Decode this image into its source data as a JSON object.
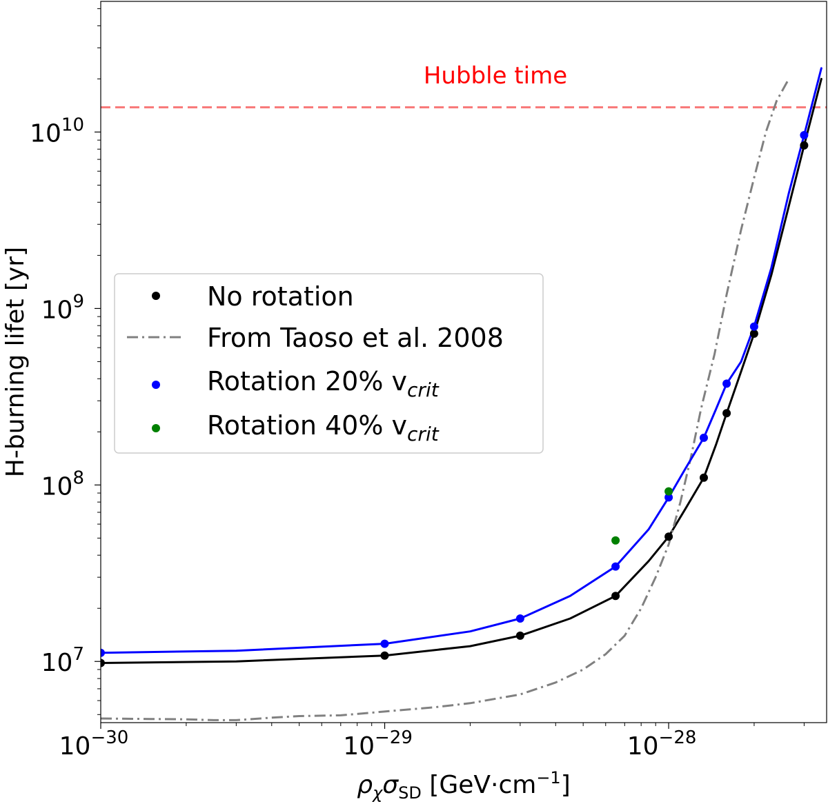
{
  "chart_data": {
    "type": "line",
    "xscale": "log",
    "yscale": "log",
    "xlim": [
      1e-30,
      3.6e-28
    ],
    "ylim": [
      4500000.0,
      55000000000.0
    ],
    "xlabel": {
      "base": "ρ",
      "sub1": "χ",
      "mid": "σ",
      "sub2": "SD",
      "unit": " [GeV·cm",
      "unit_exp": "−1",
      "close": "]"
    },
    "ylabel": "H-burning lifet [yr]",
    "x_ticks": [
      {
        "value": 1e-30,
        "base": "10",
        "exp": "−30"
      },
      {
        "value": 1e-29,
        "base": "10",
        "exp": "−29"
      },
      {
        "value": 1e-28,
        "base": "10",
        "exp": "−28"
      }
    ],
    "y_ticks": [
      {
        "value": 10000000.0,
        "base": "10",
        "exp": "7"
      },
      {
        "value": 100000000.0,
        "base": "10",
        "exp": "8"
      },
      {
        "value": 1000000000.0,
        "base": "10",
        "exp": "9"
      },
      {
        "value": 10000000000.0,
        "base": "10",
        "exp": "10"
      }
    ],
    "reference_line": {
      "label": "Hubble time",
      "value": 13800000000.0,
      "color": "#f87878",
      "text_color": "#ff0000"
    },
    "series": [
      {
        "name": "No rotation",
        "kind": "points+curve",
        "color": "#000000",
        "points": [
          [
            1e-30,
            9800000.0
          ],
          [
            1e-29,
            10800000.0
          ],
          [
            3e-29,
            14000000.0
          ],
          [
            6.5e-29,
            23500000.0
          ],
          [
            1e-28,
            51000000.0
          ],
          [
            1.33e-28,
            110000000.0
          ],
          [
            1.6e-28,
            255000000.0
          ],
          [
            2e-28,
            720000000.0
          ],
          [
            3e-28,
            8400000000.0
          ]
        ],
        "curve": [
          [
            1e-30,
            9800000.0
          ],
          [
            3e-30,
            10000000.0
          ],
          [
            1e-29,
            10800000.0
          ],
          [
            2e-29,
            12200000.0
          ],
          [
            3e-29,
            14000000.0
          ],
          [
            4.5e-29,
            17500000.0
          ],
          [
            6.5e-29,
            23500000.0
          ],
          [
            8.5e-29,
            37000000.0
          ],
          [
            1e-28,
            51000000.0
          ],
          [
            1.15e-28,
            74000000.0
          ],
          [
            1.33e-28,
            110000000.0
          ],
          [
            1.47e-28,
            170000000.0
          ],
          [
            1.6e-28,
            255000000.0
          ],
          [
            1.8e-28,
            440000000.0
          ],
          [
            2e-28,
            720000000.0
          ],
          [
            2.3e-28,
            1550000000.0
          ],
          [
            2.65e-28,
            3800000000.0
          ],
          [
            3e-28,
            8400000000.0
          ],
          [
            3.45e-28,
            20000000000.0
          ]
        ]
      },
      {
        "name": "From Taoso et al. 2008",
        "kind": "dashdot",
        "color": "#808080",
        "curve": [
          [
            1e-30,
            4750000.0
          ],
          [
            1.5e-30,
            4720000.0
          ],
          [
            2e-30,
            4700000.0
          ],
          [
            2.5e-30,
            4650000.0
          ],
          [
            3e-30,
            4650000.0
          ],
          [
            4e-30,
            4800000.0
          ],
          [
            5e-30,
            4900000.0
          ],
          [
            7e-30,
            4950000.0
          ],
          [
            1e-29,
            5200000.0
          ],
          [
            1.5e-29,
            5500000.0
          ],
          [
            2e-29,
            5800000.0
          ],
          [
            3e-29,
            6500000.0
          ],
          [
            4e-29,
            7600000.0
          ],
          [
            5e-29,
            9000000.0
          ],
          [
            6e-29,
            11000000.0
          ],
          [
            7e-29,
            14000000.0
          ],
          [
            8e-29,
            20000000.0
          ],
          [
            9e-29,
            30000000.0
          ],
          [
            1e-28,
            46000000.0
          ],
          [
            1.1e-28,
            80000000.0
          ],
          [
            1.2e-28,
            145000000.0
          ],
          [
            1.3e-28,
            270000000.0
          ],
          [
            1.45e-28,
            550000000.0
          ],
          [
            1.6e-28,
            1200000000.0
          ],
          [
            1.8e-28,
            2800000000.0
          ],
          [
            2e-28,
            5500000000.0
          ],
          [
            2.2e-28,
            10000000000.0
          ],
          [
            2.4e-28,
            15000000000.0
          ],
          [
            2.65e-28,
            20000000000.0
          ]
        ]
      },
      {
        "name": "Rotation 20% v",
        "name_sub": "crit",
        "kind": "points+curve",
        "color": "#0000ff",
        "points": [
          [
            1e-30,
            11200000.0
          ],
          [
            1e-29,
            12600000.0
          ],
          [
            3e-29,
            17500000.0
          ],
          [
            6.5e-29,
            34500000.0
          ],
          [
            1e-28,
            85000000.0
          ],
          [
            1.33e-28,
            185000000.0
          ],
          [
            1.6e-28,
            375000000.0
          ],
          [
            2e-28,
            790000000.0
          ],
          [
            3e-28,
            9600000000.0
          ]
        ],
        "curve": [
          [
            1e-30,
            11200000.0
          ],
          [
            3e-30,
            11500000.0
          ],
          [
            1e-29,
            12600000.0
          ],
          [
            2e-29,
            14800000.0
          ],
          [
            3e-29,
            17500000.0
          ],
          [
            4.5e-29,
            23500000.0
          ],
          [
            6.5e-29,
            34500000.0
          ],
          [
            8.5e-29,
            56000000.0
          ],
          [
            1e-28,
            85000000.0
          ],
          [
            1.15e-28,
            125000000.0
          ],
          [
            1.33e-28,
            185000000.0
          ],
          [
            1.47e-28,
            270000000.0
          ],
          [
            1.6e-28,
            375000000.0
          ],
          [
            1.8e-28,
            500000000.0
          ],
          [
            2e-28,
            790000000.0
          ],
          [
            2.3e-28,
            1700000000.0
          ],
          [
            2.65e-28,
            4500000000.0
          ],
          [
            3e-28,
            9600000000.0
          ],
          [
            3.45e-28,
            23000000000.0
          ]
        ]
      },
      {
        "name": "Rotation 40% v",
        "name_sub": "crit",
        "kind": "points",
        "color": "#008000",
        "points": [
          [
            6.5e-29,
            48500000.0
          ],
          [
            1e-28,
            92000000.0
          ]
        ]
      }
    ],
    "legend": {
      "position": "center-left"
    }
  }
}
